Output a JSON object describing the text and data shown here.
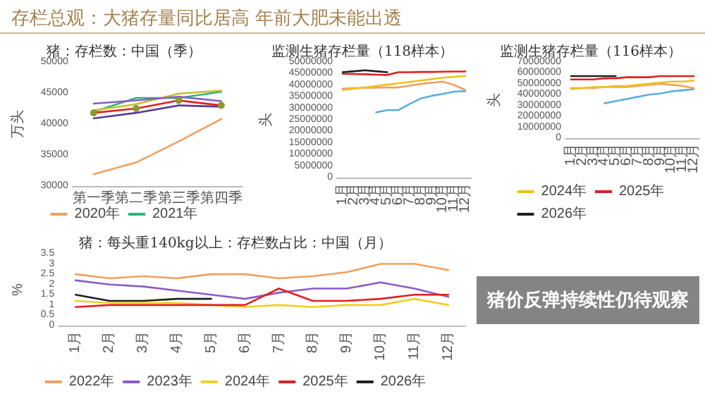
{
  "chart_data": [
    {
      "type": "other",
      "title": "存栏总观：大猪存量同比居高 年前大肥未能出透",
      "annotations": [
        "猪价反弹持续性仍待观察"
      ]
    },
    {
      "type": "line",
      "title": "猪：存栏数：中国（季）",
      "ylabel": "万头",
      "categories": [
        "第一季",
        "第二季",
        "第三季",
        "第四季"
      ],
      "ylim": [
        30000,
        50000
      ],
      "yticks": [
        30000,
        35000,
        40000,
        45000,
        50000
      ],
      "grid": false,
      "legend": "bottom",
      "marker": "none",
      "line_style": "solid",
      "series": [
        {
          "name": "2020年",
          "color": "#f0a060",
          "values": [
            31900,
            33800,
            37200,
            40800
          ]
        },
        {
          "name": "2021年",
          "color": "#2db37a",
          "values": [
            42000,
            44200,
            44200,
            45200
          ]
        },
        {
          "color": "#c8c030",
          "values": [
            42200,
            43200,
            44900,
            45400
          ]
        },
        {
          "color": "#8a5cc8",
          "values": [
            43300,
            43800,
            44400,
            43700
          ]
        },
        {
          "color": "#5a3a9a",
          "values": [
            40900,
            41800,
            43000,
            42800
          ]
        },
        {
          "color": "#e02020",
          "marker": "circle",
          "values": [
            41800,
            42500,
            43800,
            43000
          ]
        }
      ]
    },
    {
      "type": "line",
      "title": "监测生猪存栏量（118样本）",
      "ylabel": "头",
      "categories": [
        "1月",
        "2月",
        "3月",
        "4月",
        "5月",
        "6月",
        "7月",
        "8月",
        "9月",
        "10月",
        "11月",
        "12月"
      ],
      "ylim": [
        0,
        50000000
      ],
      "yticks": [
        0,
        5000000,
        10000000,
        15000000,
        20000000,
        25000000,
        30000000,
        35000000,
        40000000,
        45000000,
        50000000
      ],
      "grid": false,
      "legend": false,
      "marker": "none",
      "line_style": "solid",
      "series": [
        {
          "color": "#5aaee0",
          "values": [
            null,
            null,
            null,
            28200000,
            29200000,
            29200000,
            31800000,
            34200000,
            35400000,
            36200000,
            37200000,
            37400000
          ]
        },
        {
          "color": "#f0a060",
          "values": [
            38500000,
            38700000,
            38800000,
            38900000,
            39000000,
            39000000,
            39800000,
            40500000,
            41000000,
            41500000,
            40000000,
            37900000
          ]
        },
        {
          "color": "#f0c020",
          "values": [
            37900000,
            38500000,
            39000000,
            39600000,
            40200000,
            40800000,
            41400000,
            42000000,
            42600000,
            43200000,
            43600000,
            44000000
          ]
        },
        {
          "color": "#e02020",
          "values": [
            44900000,
            44800000,
            44700000,
            44500000,
            44400000,
            45600000,
            45600000,
            45700000,
            45700000,
            45800000,
            45900000,
            45900000
          ]
        },
        {
          "color": "#202020",
          "values": [
            45600000,
            46000000,
            46400000,
            46000000,
            45600000,
            null,
            null,
            null,
            null,
            null,
            null,
            null
          ]
        }
      ]
    },
    {
      "type": "line",
      "title": "监测生猪存栏量（116样本）",
      "ylabel": "头",
      "categories": [
        "1月",
        "2月",
        "3月",
        "4月",
        "5月",
        "6月",
        "7月",
        "8月",
        "9月",
        "10月",
        "11月",
        "12月"
      ],
      "ylim": [
        0,
        70000000
      ],
      "yticks": [
        0,
        10000000,
        20000000,
        30000000,
        40000000,
        50000000,
        60000000,
        70000000
      ],
      "grid": false,
      "legend": "bottom",
      "marker": "none",
      "line_style": "solid",
      "series": [
        {
          "color": "#5aaee0",
          "values": [
            null,
            null,
            null,
            32000000,
            34000000,
            36000000,
            38000000,
            40000000,
            41000000,
            43000000,
            44000000,
            45000000
          ]
        },
        {
          "color": "#f0a060",
          "values": [
            46000000,
            46000000,
            46000000,
            47000000,
            47000000,
            47000000,
            48000000,
            49000000,
            50000000,
            49000000,
            48000000,
            46000000
          ]
        },
        {
          "name": "2024年",
          "color": "#f0c020",
          "values": [
            45000000,
            46000000,
            47000000,
            47000000,
            48000000,
            48000000,
            49000000,
            50000000,
            51000000,
            52000000,
            52000000,
            53000000
          ]
        },
        {
          "name": "2025年",
          "color": "#e02020",
          "values": [
            54000000,
            54000000,
            54000000,
            55000000,
            55000000,
            56000000,
            56000000,
            56000000,
            57000000,
            57000000,
            57000000,
            57000000
          ]
        },
        {
          "name": "2026年",
          "color": "#202020",
          "values": [
            57000000,
            57000000,
            57000000,
            57000000,
            57000000,
            null,
            null,
            null,
            null,
            null,
            null,
            null
          ]
        }
      ]
    },
    {
      "type": "line",
      "title": "猪：每头重140kg以上：存栏数占比：中国（月）",
      "ylabel": "%",
      "categories": [
        "1月",
        "2月",
        "3月",
        "4月",
        "5月",
        "6月",
        "7月",
        "8月",
        "9月",
        "10月",
        "11月",
        "12月"
      ],
      "ylim": [
        0,
        3.5
      ],
      "yticks": [
        0,
        0.5,
        1,
        1.5,
        2,
        2.5,
        3,
        3.5
      ],
      "grid": false,
      "legend": "bottom",
      "marker": "none",
      "line_style": "solid",
      "series": [
        {
          "name": "2022年",
          "color": "#f0a060",
          "values": [
            2.5,
            2.3,
            2.4,
            2.3,
            2.5,
            2.5,
            2.3,
            2.4,
            2.6,
            3.0,
            3.0,
            2.7
          ]
        },
        {
          "name": "2023年",
          "color": "#8a5cc8",
          "values": [
            2.2,
            2.0,
            1.9,
            1.7,
            1.5,
            1.3,
            1.6,
            1.8,
            1.8,
            2.1,
            1.8,
            1.4
          ]
        },
        {
          "name": "2024年",
          "color": "#f0d020",
          "values": [
            1.2,
            1.1,
            1.1,
            1.1,
            1.0,
            0.9,
            1.0,
            0.9,
            1.0,
            1.0,
            1.3,
            1.0
          ]
        },
        {
          "name": "2025年",
          "color": "#e02020",
          "values": [
            0.9,
            1.0,
            1.0,
            1.0,
            1.0,
            1.0,
            1.8,
            1.2,
            1.2,
            1.3,
            1.5,
            1.5
          ]
        },
        {
          "name": "2026年",
          "color": "#202020",
          "values": [
            1.5,
            1.2,
            1.2,
            1.3,
            1.3,
            null,
            null,
            null,
            null,
            null,
            null,
            null
          ]
        }
      ]
    }
  ]
}
